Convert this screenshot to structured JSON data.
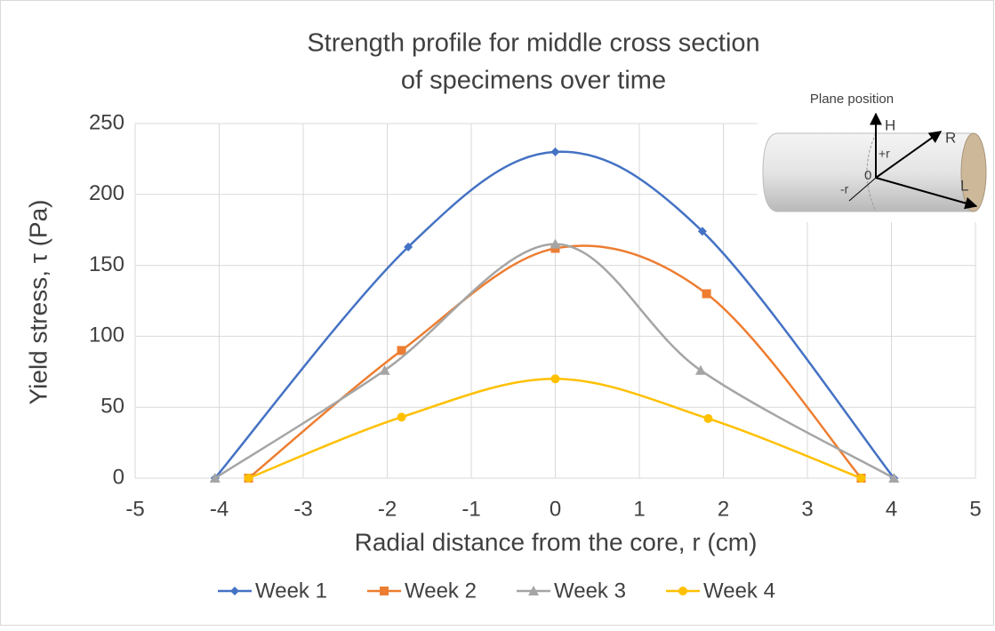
{
  "chart_data": {
    "type": "line",
    "title": [
      "Strength profile for middle cross section",
      "of specimens over time"
    ],
    "x_label": "Radial distance from the core, r (cm)",
    "y_label": "Yield stress, τ (Pa)",
    "xlim": [
      -5,
      5
    ],
    "xticks": [
      -5,
      -4,
      -3,
      -2,
      -1,
      0,
      1,
      2,
      3,
      4,
      5
    ],
    "ylim": [
      0,
      250
    ],
    "yticks": [
      0,
      50,
      100,
      150,
      200,
      250
    ],
    "grid": true,
    "smooth": true,
    "legend": "bottom",
    "series": [
      {
        "name": "Week 1",
        "color": "#4472c4",
        "marker": "diamond",
        "x": [
          -4.05,
          -1.75,
          0,
          1.75,
          4.03
        ],
        "values": [
          0,
          163,
          230,
          174,
          0
        ]
      },
      {
        "name": "Week 2",
        "color": "#ed7d31",
        "marker": "square",
        "x": [
          -3.65,
          -1.83,
          0,
          1.8,
          3.64
        ],
        "values": [
          0,
          90,
          162,
          130,
          0
        ]
      },
      {
        "name": "Week 3",
        "color": "#a5a5a5",
        "marker": "triangle",
        "x": [
          -4.05,
          -2.03,
          0,
          1.73,
          4.03
        ],
        "values": [
          0,
          76,
          165,
          76,
          0
        ]
      },
      {
        "name": "Week 4",
        "color": "#ffc000",
        "marker": "circle",
        "x": [
          -3.65,
          -1.83,
          0,
          1.82,
          3.64
        ],
        "values": [
          0,
          43,
          70,
          42,
          0
        ]
      }
    ],
    "inset": {
      "title": "Plane position",
      "labels": [
        "H",
        "R",
        "+r",
        "0",
        "-r",
        "L"
      ]
    }
  }
}
